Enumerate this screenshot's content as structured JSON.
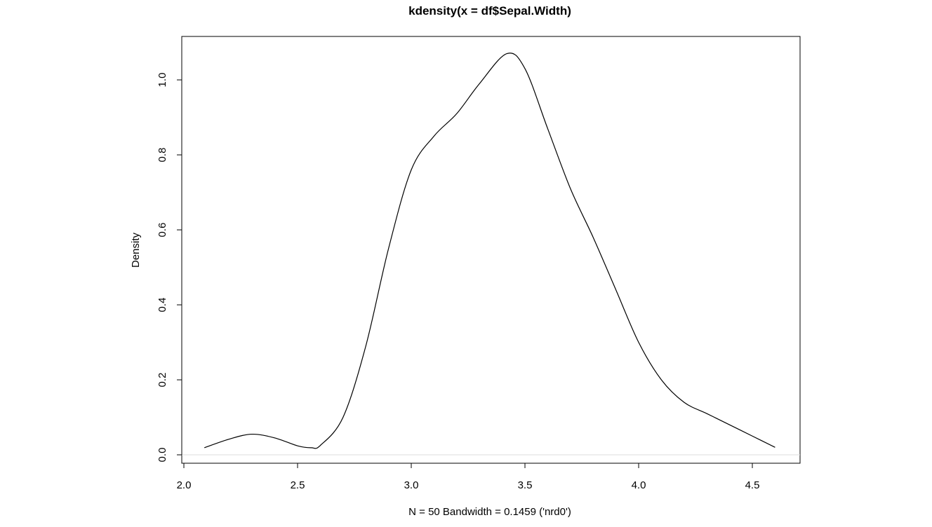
{
  "chart_data": {
    "type": "line",
    "title": "kdensity(x = df$Sepal.Width)",
    "xlabel": "N = 50   Bandwidth = 0.1459 ('nrd0')",
    "ylabel": "Density",
    "xlim": [
      2.0,
      4.5
    ],
    "ylim": [
      0.0,
      1.0
    ],
    "x_ticks": [
      {
        "value": 2.0,
        "label": "2.0"
      },
      {
        "value": 2.5,
        "label": "2.5"
      },
      {
        "value": 3.0,
        "label": "3.0"
      },
      {
        "value": 3.5,
        "label": "3.5"
      },
      {
        "value": 4.0,
        "label": "4.0"
      },
      {
        "value": 4.5,
        "label": "4.5"
      }
    ],
    "y_ticks": [
      {
        "value": 0.0,
        "label": "0.0"
      },
      {
        "value": 0.2,
        "label": "0.2"
      },
      {
        "value": 0.4,
        "label": "0.4"
      },
      {
        "value": 0.6,
        "label": "0.6"
      },
      {
        "value": 0.8,
        "label": "0.8"
      },
      {
        "value": 1.0,
        "label": "1.0"
      }
    ],
    "grid": false,
    "zero_line": true,
    "line_color": "#000000",
    "zero_line_color": "#dddddd",
    "series": [
      {
        "x": [
          2.09,
          2.2,
          2.3,
          2.4,
          2.5,
          2.56,
          2.6,
          2.7,
          2.8,
          2.9,
          3.0,
          3.1,
          3.2,
          3.3,
          3.42,
          3.5,
          3.6,
          3.7,
          3.8,
          3.9,
          4.0,
          4.1,
          4.2,
          4.3,
          4.4,
          4.5,
          4.6
        ],
        "y": [
          0.019,
          0.042,
          0.055,
          0.045,
          0.024,
          0.019,
          0.025,
          0.1,
          0.29,
          0.55,
          0.76,
          0.85,
          0.91,
          0.99,
          1.07,
          1.03,
          0.87,
          0.71,
          0.58,
          0.44,
          0.3,
          0.2,
          0.14,
          0.11,
          0.08,
          0.05,
          0.02
        ]
      }
    ]
  }
}
